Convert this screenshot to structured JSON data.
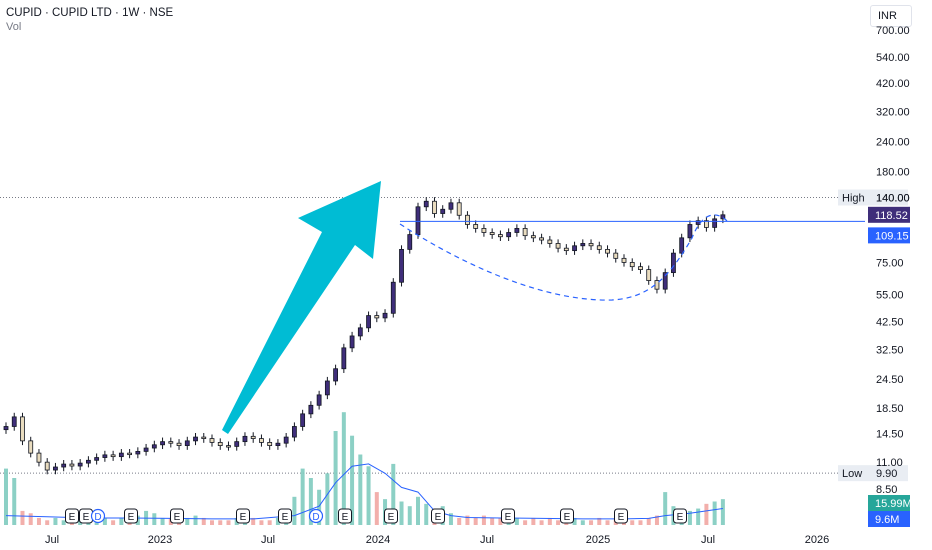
{
  "header": {
    "title": "CUPID · CUPID LTD · 1W · NSE",
    "subtitle": "Vol",
    "currency": "INR"
  },
  "colors": {
    "up": "#131722",
    "down_fill": "#ffffff",
    "candle_up_fill": "#3f2e7a",
    "candle_down_fill": "#e9dcbf",
    "arrow": "#00bcd4",
    "blue_line": "#2962ff",
    "dashed_curve": "#2962ff",
    "vol_up": "#7fcbbf",
    "vol_down": "#f1a6a2",
    "vol_ma": "#2962ff"
  },
  "chart_data": {
    "type": "candlestick",
    "scale": "log",
    "price_axis_labels": [
      "700.00",
      "540.00",
      "420.00",
      "320.00",
      "240.00",
      "180.00",
      "140.00",
      "75.00",
      "55.00",
      "42.50",
      "32.50",
      "24.50",
      "18.50",
      "14.50",
      "11.00",
      "8.50"
    ],
    "price_axis_values": [
      700,
      540,
      420,
      320,
      240,
      180,
      140,
      75,
      55,
      42.5,
      32.5,
      24.5,
      18.5,
      14.5,
      11,
      8.5
    ],
    "time_axis_labels": [
      "Jul",
      "2023",
      "Jul",
      "2024",
      "Jul",
      "2025",
      "Jul",
      "2026"
    ],
    "markers": {
      "high": {
        "label": "High",
        "value": "140.00"
      },
      "low": {
        "label": "Low",
        "value": "9.90"
      },
      "last_price": "118.52",
      "level": "109.15",
      "volume": "15.99M",
      "volume_ma": "9.6M"
    },
    "events": [
      "E",
      "E",
      "D",
      "E",
      "E",
      "E",
      "E",
      "D",
      "E",
      "E",
      "E",
      "E",
      "E",
      "E",
      "E"
    ],
    "price_series": [
      [
        0,
        15.5
      ],
      [
        2,
        17
      ],
      [
        4,
        13.5
      ],
      [
        6,
        12
      ],
      [
        8,
        11
      ],
      [
        10,
        10.2
      ],
      [
        12,
        10.5
      ],
      [
        14,
        10.8
      ],
      [
        16,
        10.6
      ],
      [
        18,
        10.9
      ],
      [
        20,
        11.2
      ],
      [
        22,
        11.5
      ],
      [
        24,
        11.8
      ],
      [
        26,
        11.6
      ],
      [
        28,
        12
      ],
      [
        30,
        11.9
      ],
      [
        32,
        12.2
      ],
      [
        34,
        12.6
      ],
      [
        36,
        13
      ],
      [
        38,
        13.4
      ],
      [
        40,
        13.2
      ],
      [
        42,
        12.9
      ],
      [
        44,
        13.5
      ],
      [
        46,
        14
      ],
      [
        48,
        13.8
      ],
      [
        50,
        13.3
      ],
      [
        52,
        12.9
      ],
      [
        54,
        12.8
      ],
      [
        56,
        13.4
      ],
      [
        58,
        14.1
      ],
      [
        60,
        13.8
      ],
      [
        62,
        13.3
      ],
      [
        64,
        12.9
      ],
      [
        66,
        13.2
      ],
      [
        68,
        14
      ],
      [
        70,
        15.5
      ],
      [
        72,
        17.5
      ],
      [
        74,
        19
      ],
      [
        76,
        21
      ],
      [
        78,
        24
      ],
      [
        80,
        27
      ],
      [
        82,
        33
      ],
      [
        84,
        37
      ],
      [
        86,
        40
      ],
      [
        88,
        45
      ],
      [
        90,
        44
      ],
      [
        92,
        46
      ],
      [
        94,
        62
      ],
      [
        96,
        85
      ],
      [
        98,
        98
      ],
      [
        100,
        128
      ],
      [
        102,
        135
      ],
      [
        104,
        120
      ],
      [
        106,
        125
      ],
      [
        108,
        133
      ],
      [
        110,
        118
      ],
      [
        112,
        108
      ],
      [
        114,
        104
      ],
      [
        116,
        100
      ],
      [
        118,
        98
      ],
      [
        120,
        96
      ],
      [
        122,
        100
      ],
      [
        124,
        104
      ],
      [
        126,
        97
      ],
      [
        128,
        95
      ],
      [
        130,
        93
      ],
      [
        132,
        90
      ],
      [
        134,
        86
      ],
      [
        136,
        84
      ],
      [
        138,
        88
      ],
      [
        140,
        90
      ],
      [
        142,
        88
      ],
      [
        144,
        85
      ],
      [
        146,
        82
      ],
      [
        148,
        78
      ],
      [
        150,
        75
      ],
      [
        152,
        72
      ],
      [
        154,
        70
      ],
      [
        156,
        63
      ],
      [
        158,
        58
      ],
      [
        160,
        68
      ],
      [
        162,
        82
      ],
      [
        164,
        95
      ],
      [
        166,
        108
      ],
      [
        168,
        112
      ],
      [
        170,
        105
      ],
      [
        172,
        114
      ],
      [
        174,
        118.52
      ]
    ],
    "volume_series": [
      [
        0,
        24
      ],
      [
        2,
        20
      ],
      [
        4,
        6
      ],
      [
        6,
        5
      ],
      [
        8,
        3
      ],
      [
        10,
        2
      ],
      [
        12,
        3
      ],
      [
        14,
        2
      ],
      [
        16,
        2
      ],
      [
        18,
        3
      ],
      [
        20,
        2
      ],
      [
        22,
        2
      ],
      [
        24,
        3
      ],
      [
        26,
        2
      ],
      [
        28,
        3
      ],
      [
        30,
        2
      ],
      [
        32,
        4
      ],
      [
        34,
        6
      ],
      [
        36,
        5
      ],
      [
        38,
        3
      ],
      [
        40,
        3
      ],
      [
        42,
        2
      ],
      [
        44,
        3
      ],
      [
        46,
        4
      ],
      [
        48,
        3
      ],
      [
        50,
        2
      ],
      [
        52,
        2
      ],
      [
        54,
        2
      ],
      [
        56,
        3
      ],
      [
        58,
        4
      ],
      [
        60,
        3
      ],
      [
        62,
        2
      ],
      [
        64,
        2
      ],
      [
        66,
        3
      ],
      [
        68,
        5
      ],
      [
        70,
        12
      ],
      [
        72,
        24
      ],
      [
        74,
        20
      ],
      [
        76,
        15
      ],
      [
        78,
        22
      ],
      [
        80,
        40
      ],
      [
        82,
        48
      ],
      [
        84,
        38
      ],
      [
        86,
        30
      ],
      [
        88,
        25
      ],
      [
        90,
        14
      ],
      [
        92,
        11
      ],
      [
        94,
        26
      ],
      [
        96,
        10
      ],
      [
        98,
        8
      ],
      [
        100,
        12
      ],
      [
        102,
        9
      ],
      [
        104,
        7
      ],
      [
        106,
        8
      ],
      [
        108,
        5
      ],
      [
        110,
        3
      ],
      [
        112,
        4
      ],
      [
        114,
        3
      ],
      [
        116,
        4
      ],
      [
        118,
        3
      ],
      [
        120,
        3
      ],
      [
        122,
        4
      ],
      [
        124,
        3
      ],
      [
        126,
        2
      ],
      [
        128,
        3
      ],
      [
        130,
        2
      ],
      [
        132,
        3
      ],
      [
        134,
        2
      ],
      [
        136,
        2
      ],
      [
        138,
        3
      ],
      [
        140,
        2
      ],
      [
        142,
        2
      ],
      [
        144,
        3
      ],
      [
        146,
        2
      ],
      [
        148,
        3
      ],
      [
        150,
        3
      ],
      [
        152,
        2
      ],
      [
        154,
        2
      ],
      [
        156,
        3
      ],
      [
        158,
        4
      ],
      [
        160,
        14
      ],
      [
        162,
        8
      ],
      [
        164,
        5
      ],
      [
        166,
        6
      ],
      [
        168,
        7
      ],
      [
        170,
        9
      ],
      [
        172,
        10
      ],
      [
        174,
        11
      ]
    ],
    "volume_ma_series": [
      [
        0,
        4
      ],
      [
        10,
        3.5
      ],
      [
        20,
        3
      ],
      [
        30,
        3
      ],
      [
        40,
        2.8
      ],
      [
        50,
        2.6
      ],
      [
        60,
        2.6
      ],
      [
        70,
        4
      ],
      [
        76,
        8
      ],
      [
        80,
        18
      ],
      [
        84,
        25
      ],
      [
        88,
        26
      ],
      [
        92,
        22
      ],
      [
        96,
        16
      ],
      [
        100,
        14
      ],
      [
        104,
        6
      ],
      [
        108,
        4
      ],
      [
        112,
        3.2
      ],
      [
        120,
        3
      ],
      [
        130,
        2.8
      ],
      [
        140,
        2.6
      ],
      [
        150,
        2.6
      ],
      [
        156,
        2.8
      ],
      [
        160,
        4
      ],
      [
        166,
        5
      ],
      [
        170,
        6
      ],
      [
        174,
        7
      ]
    ]
  }
}
